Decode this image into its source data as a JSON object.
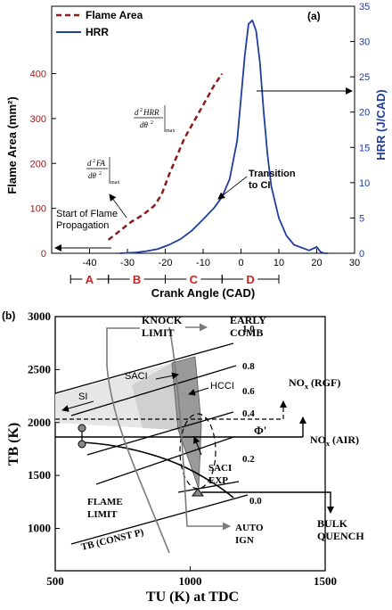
{
  "colors": {
    "flame_area": "#8b1a1a",
    "hrr": "#1f3c9e",
    "phase": "#d62020",
    "axis_b": "#000000",
    "saci_fill": "#c9c9c9",
    "saci_exp_fill": "#9a9a9a",
    "arrow_gray": "#7a7a7a"
  },
  "chart_data": [
    {
      "type": "line",
      "panel_label": "(a)",
      "xlabel": "Crank Angle (CAD)",
      "ylabel": "Flame Area (mm²)",
      "y2label": "HRR (J/CAD)",
      "xlim": [
        -50,
        30
      ],
      "ylim": [
        0,
        550
      ],
      "y2lim": [
        0,
        35
      ],
      "xticks": [
        -40,
        -30,
        -20,
        -10,
        0,
        10,
        20,
        30
      ],
      "yticks": [
        0,
        100,
        200,
        300,
        400
      ],
      "y2ticks": [
        0,
        5,
        10,
        15,
        20,
        25,
        30,
        35
      ],
      "legend_position": "top-left",
      "series": [
        {
          "name": "Flame Area",
          "axis": "left",
          "style": "dashed",
          "x": [
            -35,
            -32,
            -29,
            -26,
            -23,
            -21,
            -19,
            -17,
            -15,
            -13,
            -11,
            -9,
            -7,
            -5
          ],
          "y": [
            30,
            50,
            70,
            85,
            105,
            130,
            175,
            215,
            255,
            285,
            315,
            345,
            375,
            400
          ]
        },
        {
          "name": "HRR",
          "axis": "right",
          "style": "solid",
          "x": [
            -32,
            -28,
            -25,
            -22,
            -19,
            -16,
            -13,
            -10,
            -7,
            -5,
            -3,
            -1,
            0,
            1,
            2,
            3,
            4,
            5,
            6,
            7,
            8,
            10,
            12,
            14,
            16,
            18,
            20,
            21,
            22,
            23
          ],
          "y": [
            0,
            0.1,
            0.3,
            0.6,
            1.2,
            2.0,
            3.2,
            4.8,
            6.5,
            8.0,
            10.5,
            16.0,
            22.0,
            28.0,
            32.5,
            33.0,
            31.5,
            27.0,
            20.0,
            14.0,
            9.5,
            5.0,
            2.5,
            1.2,
            0.8,
            0.4,
            0.9,
            0.2,
            0.0,
            0.0
          ]
        }
      ],
      "annotations": {
        "flame_prop": "Start of Flame Propagation",
        "transition": "Transition to CI",
        "eq1": "d²FA / dθ² |max",
        "eq2": "d²HRR / dθ² |max"
      },
      "phases": [
        {
          "label": "A",
          "from": -45,
          "to": -35
        },
        {
          "label": "B",
          "from": -35,
          "to": -20
        },
        {
          "label": "C",
          "from": -20,
          "to": -5
        },
        {
          "label": "D",
          "from": -5,
          "to": 10
        }
      ]
    },
    {
      "type": "diagram",
      "panel_label": "(b)",
      "xlabel": "TU (K) at TDC",
      "ylabel": "TB (K)",
      "xlim": [
        500,
        1500
      ],
      "ylim": [
        600,
        3000
      ],
      "xticks": [
        500,
        1000,
        1500
      ],
      "yticks": [
        1000,
        1500,
        2000,
        2500,
        3000
      ],
      "phi_lines": [
        "1.0",
        "0.8",
        "0.6",
        "0.4",
        "0.2",
        "0.0"
      ],
      "labels": {
        "knock": "KNOCK LIMIT",
        "early": "EARLY COMB",
        "si": "SI",
        "saci": "SACI",
        "hcci": "HCCI",
        "phi": "Φ'",
        "nox_rgf": "NOx (RGF)",
        "nox_air": "NOx (AIR)",
        "saci_exp": "SACI EXP",
        "flame_limit": "FLAME LIMIT",
        "bulk_quench": "BULK QUENCH",
        "auto_ign": "AUTO IGN",
        "tb_const": "TB (CONST P)"
      }
    }
  ]
}
